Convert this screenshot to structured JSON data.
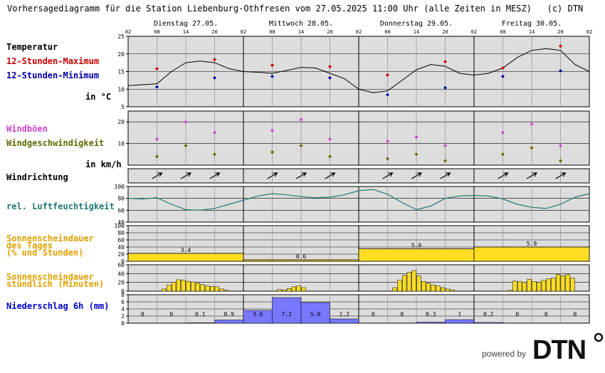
{
  "header": {
    "title": "Vorhersagediagramm für die Station Liebenburg-Othfresen vom 27.05.2025 11:00 Uhr (alle Zeiten in MESZ)",
    "copyright": "(c) DTN"
  },
  "days": [
    "Dienstag 27.05.",
    "Mittwoch 28.05.",
    "Donnerstag 29.05.",
    "Freitag 30.05."
  ],
  "hour_ticks": [
    "02",
    "08",
    "14",
    "20",
    "02",
    "08",
    "14",
    "20",
    "02",
    "08",
    "14",
    "20",
    "02",
    "08",
    "14",
    "20",
    "02"
  ],
  "labels": {
    "temperatur": "Temperatur",
    "max": "12-Stunden-Maximum",
    "min": "12-Stunden-Minimum",
    "temp_unit": "in °C",
    "windboeen": "Windböen",
    "windgeschw": "Windgeschwindigkeit",
    "wind_unit": "in km/h",
    "windrichtung": "Windrichtung",
    "feuchte": "rel. Luftfeuchtigkeit",
    "sonne_tag_1": "Sonnenscheindauer",
    "sonne_tag_2": "des Tages",
    "sonne_tag_3": "(% und Stunden)",
    "sonne_std_1": "Sonnenscheindauer",
    "sonne_std_2": "stündlich (Minuten)",
    "niederschlag": "Niederschlag 6h (mm)"
  },
  "colors": {
    "max": "#cc0000",
    "min": "#0000aa",
    "gust": "#cc44cc",
    "wind": "#666600",
    "humidity": "#227777",
    "sun": "#ffdd22",
    "precip": "#7777ff",
    "sun_label": "#e0a000",
    "precip_label": "#0000cc",
    "bg": "#dddddd"
  },
  "logo": {
    "powered": "powered by",
    "brand": "DTN"
  },
  "chart_data": {
    "type": "line",
    "x_unit": "hours from 27.05. 02:00",
    "temperature": {
      "ylim": [
        5,
        25
      ],
      "yticks": [
        5,
        10,
        15,
        20,
        25
      ],
      "curve_x": [
        0,
        6,
        9,
        12,
        15,
        18,
        21,
        24,
        27,
        30,
        33,
        36,
        39,
        42,
        45,
        48,
        51,
        54,
        57,
        60,
        63,
        66,
        69,
        72,
        75,
        78,
        81,
        84,
        87,
        90,
        93,
        96
      ],
      "curve_y": [
        11,
        11.5,
        15,
        17.5,
        18,
        17.5,
        15.8,
        15,
        14.8,
        14.5,
        15.3,
        16.2,
        16,
        14.5,
        13,
        10,
        9,
        9.5,
        12.5,
        15.5,
        17,
        16.5,
        14.5,
        14,
        14.5,
        16,
        19,
        21,
        21.5,
        21,
        17,
        15
      ],
      "max_x": [
        6,
        18,
        30,
        42,
        54,
        66,
        78,
        90
      ],
      "max_y": [
        15.8,
        18.4,
        16.8,
        16.4,
        14,
        17.8,
        16,
        22.2
      ],
      "min_x": [
        6,
        18,
        30,
        42,
        54,
        66,
        78,
        90
      ],
      "min_y": [
        10.6,
        13.2,
        13.6,
        13.2,
        8.4,
        10.4,
        13.6,
        15.2
      ]
    },
    "wind": {
      "ylim": [
        0,
        25
      ],
      "yticks": [
        10,
        20
      ],
      "x": [
        6,
        12,
        18,
        30,
        36,
        42,
        54,
        60,
        66,
        78,
        84,
        90
      ],
      "gusts": [
        12,
        20,
        15,
        16,
        21,
        12,
        11,
        13,
        9,
        15,
        19,
        9
      ],
      "speed": [
        4,
        9,
        5,
        6,
        9,
        4,
        3,
        5,
        2,
        5,
        8,
        2
      ]
    },
    "wind_direction": {
      "x": [
        6,
        12,
        18,
        30,
        36,
        42,
        54,
        60,
        66,
        78,
        84,
        90
      ],
      "to_deg": [
        60,
        60,
        60,
        60,
        60,
        60,
        60,
        60,
        60,
        60,
        60,
        60
      ]
    },
    "humidity": {
      "ylim": [
        40,
        100
      ],
      "yticks": [
        40,
        60,
        80,
        100
      ],
      "x": [
        0,
        3,
        6,
        9,
        12,
        15,
        18,
        21,
        24,
        27,
        30,
        33,
        36,
        39,
        42,
        45,
        48,
        51,
        54,
        57,
        60,
        63,
        66,
        69,
        72,
        75,
        78,
        81,
        84,
        87,
        90,
        93,
        96
      ],
      "y": [
        80,
        79,
        81,
        70,
        61,
        60,
        63,
        70,
        77,
        84,
        88,
        86,
        83,
        81,
        82,
        86,
        93,
        95,
        87,
        73,
        61,
        67,
        80,
        84,
        85,
        84,
        79,
        70,
        65,
        63,
        70,
        82,
        88
      ]
    },
    "sun_daily": {
      "ylim": [
        0,
        100
      ],
      "yticks": [
        0,
        20,
        40,
        60,
        80,
        100
      ],
      "percent": [
        22,
        4,
        35,
        40
      ],
      "hours": [
        "3.4",
        "0.6",
        "5.0",
        "5.9"
      ]
    },
    "sun_hourly": {
      "ylim": [
        0,
        60
      ],
      "yticks": [
        0,
        20,
        40,
        60
      ],
      "minutes": [
        0,
        0,
        0,
        0,
        0,
        0,
        0,
        5,
        14,
        20,
        26,
        25,
        22,
        21,
        18,
        15,
        12,
        11,
        10,
        5,
        2,
        0,
        0,
        0,
        0,
        0,
        0,
        0,
        0,
        0,
        0,
        4,
        3,
        6,
        10,
        12,
        8,
        0,
        0,
        0,
        0,
        0,
        0,
        0,
        0,
        0,
        0,
        0,
        0,
        0,
        0,
        0,
        0,
        0,
        0,
        8,
        25,
        36,
        43,
        47,
        35,
        22,
        18,
        14,
        12,
        8,
        5,
        3,
        0,
        0,
        0,
        0,
        0,
        0,
        0,
        0,
        0,
        0,
        0,
        2,
        23,
        22,
        20,
        27,
        22,
        20,
        25,
        28,
        30,
        38,
        35,
        38,
        30,
        0,
        0,
        0
      ]
    },
    "precipitation": {
      "ylim": [
        0,
        8
      ],
      "yticks": [
        0,
        2,
        4,
        6,
        8
      ],
      "values": [
        0,
        0,
        0.1,
        0.9,
        3.6,
        7.2,
        5.8,
        1.2,
        0,
        0,
        0.3,
        1,
        0.2,
        0,
        0,
        0
      ],
      "labels": [
        "0",
        "0",
        "0.1",
        "0.9",
        "3.6",
        "7.2",
        "5.8",
        "1.2",
        "0",
        "0",
        "0.3",
        "1",
        "0.2",
        "0",
        "0",
        "0"
      ]
    }
  }
}
